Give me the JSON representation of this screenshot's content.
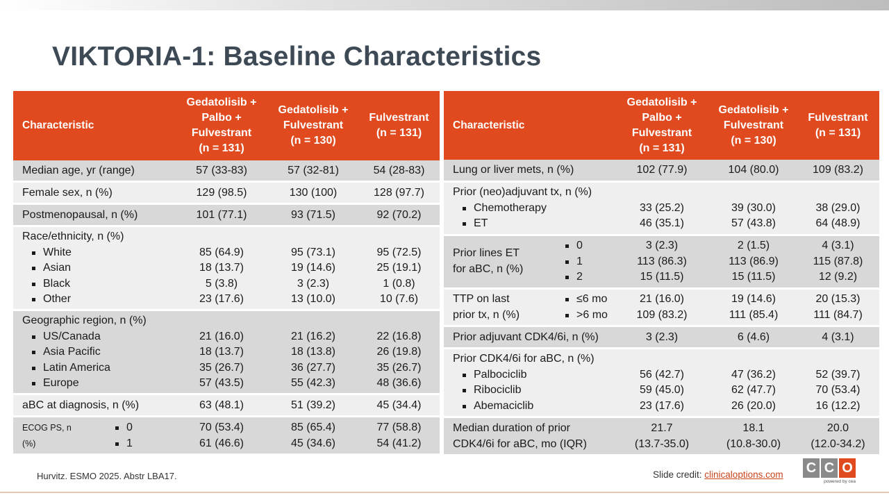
{
  "title": "VIKTORIA-1: Baseline Characteristics",
  "colors": {
    "header": "#e04a1e",
    "title": "#3d4a56",
    "row_dark": "#d8d8d8",
    "row_light": "#efefef"
  },
  "left": {
    "headers": {
      "characteristic": "Characteristic",
      "col1": [
        "Gedatolisib +",
        "Palbo +",
        "Fulvestrant",
        "(n = 131)"
      ],
      "col2": [
        "Gedatolisib +",
        "Fulvestrant",
        "(n = 130)"
      ],
      "col3": [
        "Fulvestrant",
        "(n = 131)"
      ]
    },
    "median_age": {
      "label": "Median age, yr (range)",
      "v": [
        "57 (33-83)",
        "57 (32-81)",
        "54 (28-83)"
      ]
    },
    "female": {
      "label": "Female sex, n (%)",
      "v": [
        "129 (98.5)",
        "130 (100)",
        "128 (97.7)"
      ]
    },
    "postmeno": {
      "label": "Postmenopausal, n (%)",
      "v": [
        "101 (77.1)",
        "93 (71.5)",
        "92 (70.2)"
      ]
    },
    "race": {
      "label": "Race/ethnicity, n (%)",
      "items": [
        {
          "label": "White",
          "v": [
            "85 (64.9)",
            "95 (73.1)",
            "95 (72.5)"
          ]
        },
        {
          "label": "Asian",
          "v": [
            "18 (13.7)",
            "19 (14.6)",
            "25 (19.1)"
          ]
        },
        {
          "label": "Black",
          "v": [
            "5 (3.8)",
            "3 (2.3)",
            "1 (0.8)"
          ]
        },
        {
          "label": "Other",
          "v": [
            "23 (17.6)",
            "13 (10.0)",
            "10 (7.6)"
          ]
        }
      ]
    },
    "region": {
      "label": "Geographic region, n (%)",
      "items": [
        {
          "label": "US/Canada",
          "v": [
            "21 (16.0)",
            "21 (16.2)",
            "22 (16.8)"
          ]
        },
        {
          "label": "Asia Pacific",
          "v": [
            "18 (13.7)",
            "18 (13.8)",
            "26 (19.8)"
          ]
        },
        {
          "label": "Latin America",
          "v": [
            "35 (26.7)",
            "36 (27.7)",
            "35 (26.7)"
          ]
        },
        {
          "label": "Europe",
          "v": [
            "57 (43.5)",
            "55 (42.3)",
            "48 (36.6)"
          ]
        }
      ]
    },
    "abc_dx": {
      "label": "aBC at diagnosis, n (%)",
      "v": [
        "63 (48.1)",
        "51 (39.2)",
        "45 (34.4)"
      ]
    },
    "ecog": {
      "label": [
        "ECOG PS, n",
        "(%)"
      ],
      "items": [
        {
          "label": "0",
          "v": [
            "70 (53.4)",
            "85 (65.4)",
            "77 (58.8)"
          ]
        },
        {
          "label": "1",
          "v": [
            "61 (46.6)",
            "45 (34.6)",
            "54 (41.2)"
          ]
        }
      ]
    }
  },
  "right": {
    "headers": {
      "characteristic": "Characteristic",
      "col1": [
        "Gedatolisib +",
        "Palbo +",
        "Fulvestrant",
        "(n = 131)"
      ],
      "col2": [
        "Gedatolisib +",
        "Fulvestrant",
        "(n = 130)"
      ],
      "col3": [
        "Fulvestrant",
        "(n = 131)"
      ]
    },
    "mets": {
      "label": "Lung or liver mets, n (%)",
      "v": [
        "102 (77.9)",
        "104 (80.0)",
        "109 (83.2)"
      ]
    },
    "neo": {
      "label": "Prior (neo)adjuvant tx, n (%)",
      "items": [
        {
          "label": "Chemotherapy",
          "v": [
            "33 (25.2)",
            "39 (30.0)",
            "38 (29.0)"
          ]
        },
        {
          "label": "ET",
          "v": [
            "46 (35.1)",
            "57 (43.8)",
            "64 (48.9)"
          ]
        }
      ]
    },
    "lines_et": {
      "label": [
        "Prior lines ET",
        "for aBC, n (%)"
      ],
      "items": [
        {
          "label": "0",
          "v": [
            "3 (2.3)",
            "2 (1.5)",
            "4 (3.1)"
          ]
        },
        {
          "label": "1",
          "v": [
            "113 (86.3)",
            "113 (86.9)",
            "115 (87.8)"
          ]
        },
        {
          "label": "2",
          "v": [
            "15 (11.5)",
            "15 (11.5)",
            "12 (9.2)"
          ]
        }
      ]
    },
    "ttp": {
      "label": [
        "TTP on last",
        "prior tx, n (%)"
      ],
      "items": [
        {
          "label": "≤6 mo",
          "v": [
            "21 (16.0)",
            "19 (14.6)",
            "20 (15.3)"
          ]
        },
        {
          "label": ">6 mo",
          "v": [
            "109 (83.2)",
            "111 (85.4)",
            "111 (84.7)"
          ]
        }
      ]
    },
    "adj_cdk": {
      "label": "Prior adjuvant CDK4/6i, n (%)",
      "v": [
        "3 (2.3)",
        "6 (4.6)",
        "4 (3.1)"
      ]
    },
    "cdk_abc": {
      "label": "Prior CDK4/6i for aBC, n (%)",
      "items": [
        {
          "label": "Palbociclib",
          "v": [
            "56 (42.7)",
            "47 (36.2)",
            "52 (39.7)"
          ]
        },
        {
          "label": "Ribociclib",
          "v": [
            "59 (45.0)",
            "62 (47.7)",
            "70 (53.4)"
          ]
        },
        {
          "label": "Abemaciclib",
          "v": [
            "23 (17.6)",
            "26 (20.0)",
            "16 (12.2)"
          ]
        }
      ]
    },
    "duration": {
      "label": [
        "Median duration of prior",
        "CDK4/6i for aBC, mo (IQR)"
      ],
      "v1": [
        "21.7",
        "(13.7-35.0)"
      ],
      "v2": [
        "18.1",
        "(10.8-30.0)"
      ],
      "v3": [
        "20.0",
        "(12.0-34.2)"
      ]
    }
  },
  "footer": {
    "citation": "Hurvitz. ESMO 2025. Abstr LBA17.",
    "credit_prefix": "Slide credit: ",
    "credit_link": "clinicaloptions.com",
    "logo_letters": [
      "C",
      "C",
      "O"
    ],
    "logo_tagline": "powered by cea"
  }
}
